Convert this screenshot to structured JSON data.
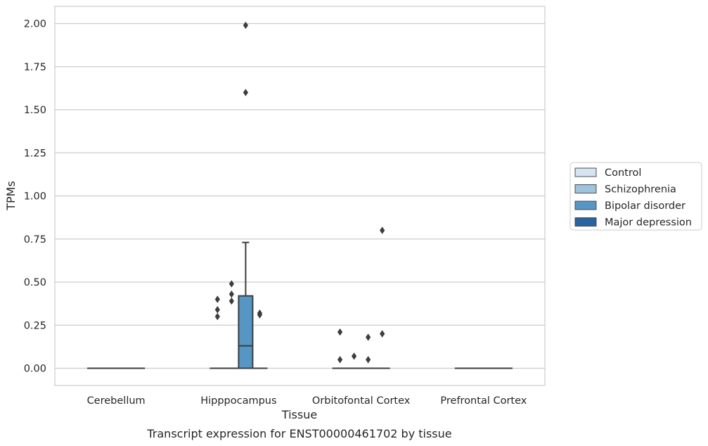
{
  "caption": "Transcript expression for ENST00000461702 by tissue",
  "chart_data": {
    "type": "box",
    "xlabel": "Tissue",
    "ylabel": "TPMs",
    "ylim": [
      -0.1,
      2.1
    ],
    "yticks": [
      0.0,
      0.25,
      0.5,
      0.75,
      1.0,
      1.25,
      1.5,
      1.75,
      2.0
    ],
    "ytick_labels": [
      "0.00",
      "0.25",
      "0.50",
      "0.75",
      "1.00",
      "1.25",
      "1.50",
      "1.75",
      "2.00"
    ],
    "grid": "horizontal",
    "legend_position": "right",
    "categories": [
      "Cerebellum",
      "Hipppocampus",
      "Orbitofontal Cortex",
      "Prefrontal Cortex"
    ],
    "series": [
      {
        "name": "Control",
        "color": "#d6e4f0"
      },
      {
        "name": "Schizophrenia",
        "color": "#9ec4dc"
      },
      {
        "name": "Bipolar disorder",
        "color": "#5696c4"
      },
      {
        "name": "Major depression",
        "color": "#2a64a0"
      }
    ],
    "boxes": [
      {
        "category": 0,
        "series": 0,
        "q1": 0,
        "median": 0,
        "q3": 0,
        "whisker_low": 0,
        "whisker_high": 0,
        "outliers": []
      },
      {
        "category": 0,
        "series": 1,
        "q1": 0,
        "median": 0,
        "q3": 0,
        "whisker_low": 0,
        "whisker_high": 0,
        "outliers": []
      },
      {
        "category": 0,
        "series": 2,
        "q1": 0,
        "median": 0,
        "q3": 0,
        "whisker_low": 0,
        "whisker_high": 0,
        "outliers": []
      },
      {
        "category": 0,
        "series": 3,
        "q1": 0,
        "median": 0,
        "q3": 0,
        "whisker_low": 0,
        "whisker_high": 0,
        "outliers": []
      },
      {
        "category": 1,
        "series": 0,
        "q1": 0,
        "median": 0,
        "q3": 0,
        "whisker_low": 0,
        "whisker_high": 0,
        "outliers": [
          0.3,
          0.34,
          0.4
        ]
      },
      {
        "category": 1,
        "series": 1,
        "q1": 0,
        "median": 0,
        "q3": 0,
        "whisker_low": 0,
        "whisker_high": 0,
        "outliers": [
          0.39,
          0.43,
          0.49
        ]
      },
      {
        "category": 1,
        "series": 2,
        "q1": 0,
        "median": 0.13,
        "q3": 0.42,
        "whisker_low": 0,
        "whisker_high": 0.73,
        "outliers": [
          1.6,
          1.99
        ]
      },
      {
        "category": 1,
        "series": 3,
        "q1": 0,
        "median": 0,
        "q3": 0,
        "whisker_low": 0,
        "whisker_high": 0,
        "outliers": [
          0.31,
          0.32
        ]
      },
      {
        "category": 2,
        "series": 0,
        "q1": 0,
        "median": 0,
        "q3": 0,
        "whisker_low": 0,
        "whisker_high": 0,
        "outliers": [
          0.05,
          0.21
        ]
      },
      {
        "category": 2,
        "series": 1,
        "q1": 0,
        "median": 0,
        "q3": 0,
        "whisker_low": 0,
        "whisker_high": 0,
        "outliers": [
          0.07
        ]
      },
      {
        "category": 2,
        "series": 2,
        "q1": 0,
        "median": 0,
        "q3": 0,
        "whisker_low": 0,
        "whisker_high": 0,
        "outliers": [
          0.05,
          0.18
        ]
      },
      {
        "category": 2,
        "series": 3,
        "q1": 0,
        "median": 0,
        "q3": 0,
        "whisker_low": 0,
        "whisker_high": 0,
        "outliers": [
          0.2,
          0.8
        ]
      },
      {
        "category": 3,
        "series": 0,
        "q1": 0,
        "median": 0,
        "q3": 0,
        "whisker_low": 0,
        "whisker_high": 0,
        "outliers": []
      },
      {
        "category": 3,
        "series": 1,
        "q1": 0,
        "median": 0,
        "q3": 0,
        "whisker_low": 0,
        "whisker_high": 0,
        "outliers": []
      },
      {
        "category": 3,
        "series": 2,
        "q1": 0,
        "median": 0,
        "q3": 0,
        "whisker_low": 0,
        "whisker_high": 0,
        "outliers": []
      },
      {
        "category": 3,
        "series": 3,
        "q1": 0,
        "median": 0,
        "q3": 0,
        "whisker_low": 0,
        "whisker_high": 0,
        "outliers": []
      }
    ]
  }
}
